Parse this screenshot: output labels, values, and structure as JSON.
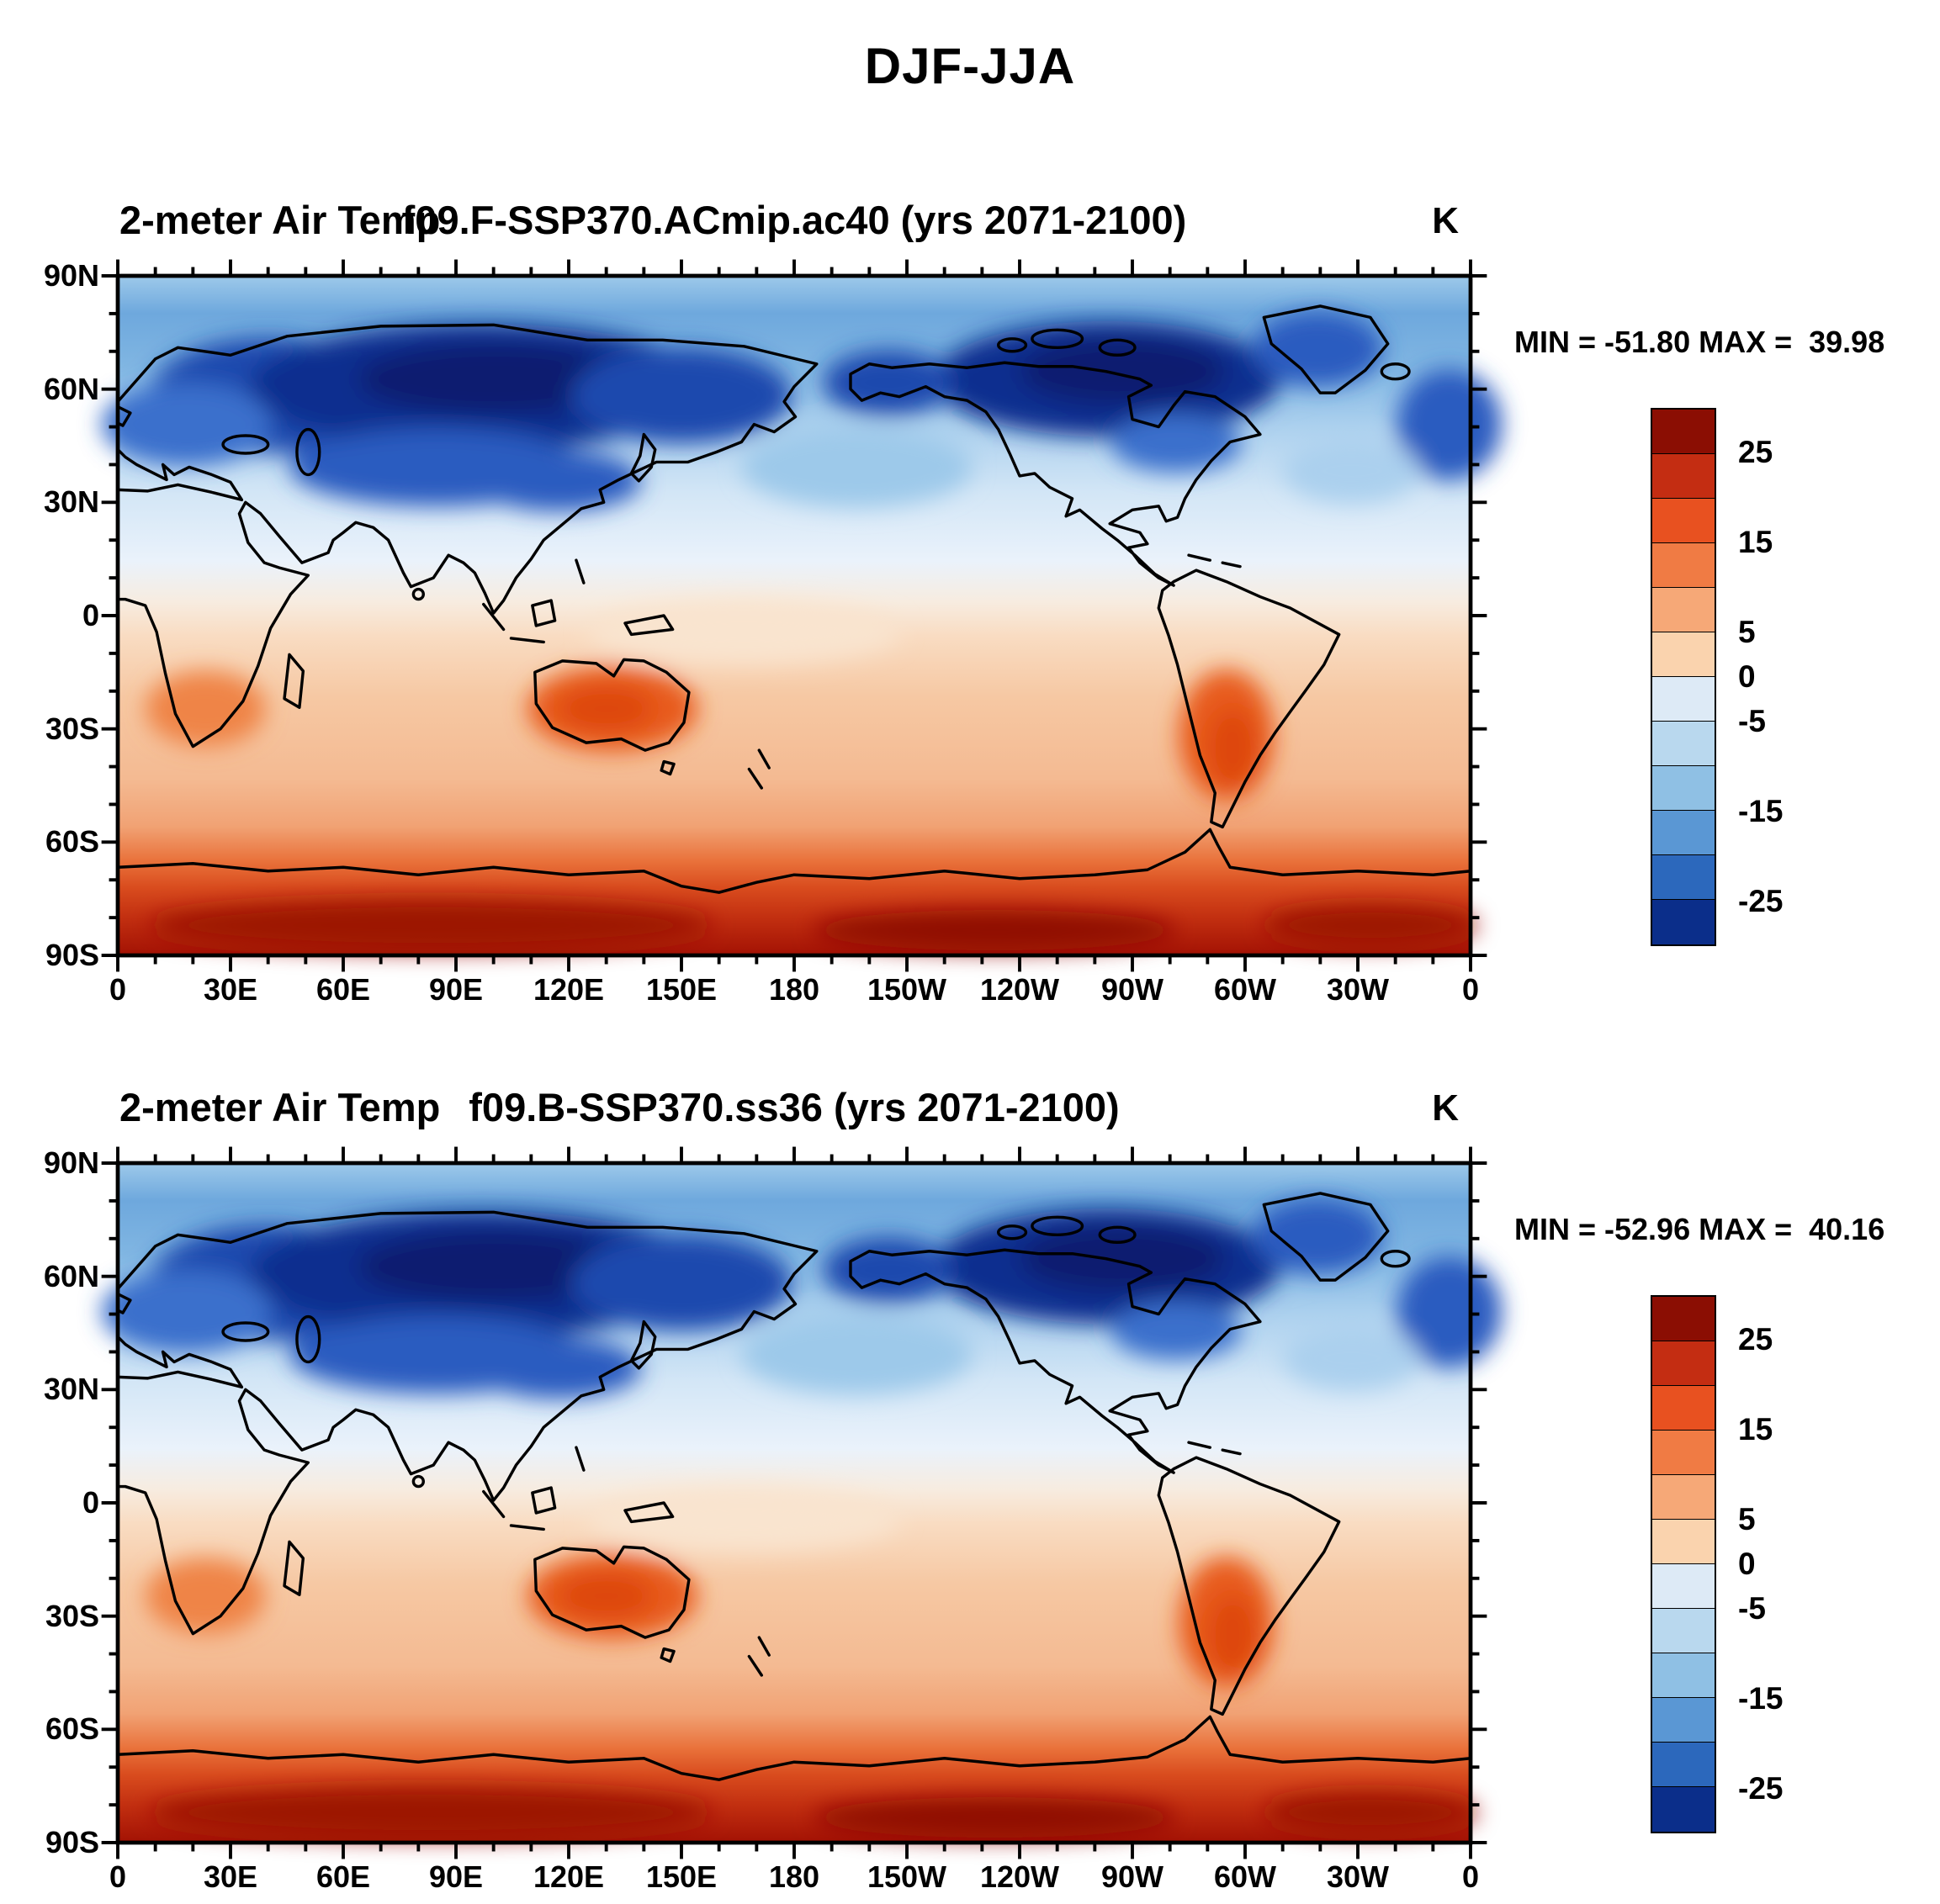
{
  "figure": {
    "title": "DJF-JJA"
  },
  "panels": [
    {
      "left_title": "2-meter Air Temp",
      "case_title": "f09.F-SSP370.ACmip.ac40 (yrs 2071-2100)",
      "units": "K",
      "minmax": "MIN = -51.80 MAX =  39.98"
    },
    {
      "left_title": "2-meter Air Temp",
      "case_title": "f09.B-SSP370.ss36 (yrs 2071-2100)",
      "units": "K",
      "minmax": "MIN = -52.96 MAX =  40.16"
    }
  ],
  "axes": {
    "x_ticks": [
      "0",
      "30E",
      "60E",
      "90E",
      "120E",
      "150E",
      "180",
      "150W",
      "120W",
      "90W",
      "60W",
      "30W",
      "0"
    ],
    "y_ticks": [
      "90N",
      "60N",
      "30N",
      "0",
      "30S",
      "60S",
      "90S"
    ]
  },
  "colorbar": {
    "segments": 12,
    "colors": [
      "#8b0e03",
      "#c42d12",
      "#e85120",
      "#f07b44",
      "#f6a877",
      "#fad3ae",
      "#ddeaf6",
      "#b9d8ee",
      "#8fc0e4",
      "#5a97d4",
      "#2c68bc",
      "#0b2e8a"
    ],
    "labels": [
      "25",
      "15",
      "5",
      "0",
      "-5",
      "-15",
      "-25"
    ],
    "label_boundaries": [
      1,
      3,
      5,
      6,
      7,
      9,
      11
    ]
  },
  "chart_data": [
    {
      "type": "heatmap",
      "title": "2-meter Air Temp  f09.F-SSP370.ACmip.ac40 (yrs 2071-2100)",
      "subtitle": "DJF-JJA",
      "units": "K",
      "min": -51.8,
      "max": 39.98,
      "x_axis": {
        "label": "longitude",
        "ticks": [
          "0",
          "30E",
          "60E",
          "90E",
          "120E",
          "150E",
          "180",
          "150W",
          "120W",
          "90W",
          "60W",
          "30W",
          "0"
        ],
        "range_deg": [
          0,
          360
        ]
      },
      "y_axis": {
        "label": "latitude",
        "ticks": [
          "90N",
          "60N",
          "30N",
          "0",
          "30S",
          "60S",
          "90S"
        ],
        "range_deg": [
          -90,
          90
        ]
      },
      "contour_levels": [
        -25,
        -20,
        -15,
        -10,
        -5,
        0,
        5,
        10,
        15,
        20,
        25
      ],
      "palette_top_to_bottom": [
        "#8b0e03",
        "#c42d12",
        "#e85120",
        "#f07b44",
        "#f6a877",
        "#fad3ae",
        "#ddeaf6",
        "#b9d8ee",
        "#8fc0e4",
        "#5a97d4",
        "#2c68bc",
        "#0b2e8a"
      ],
      "legend_position": "right",
      "grid": false,
      "pattern_summary": "Northern Hemisphere negative (blue; DJF colder than JJA) with minima below -25 K over Siberia and northern Canada; tropics near zero; Southern Hemisphere positive (orange/red) with maxima above 25 K over Antarctica."
    },
    {
      "type": "heatmap",
      "title": "2-meter Air Temp  f09.B-SSP370.ss36 (yrs 2071-2100)",
      "subtitle": "DJF-JJA",
      "units": "K",
      "min": -52.96,
      "max": 40.16,
      "x_axis": {
        "label": "longitude",
        "ticks": [
          "0",
          "30E",
          "60E",
          "90E",
          "120E",
          "150E",
          "180",
          "150W",
          "120W",
          "90W",
          "60W",
          "30W",
          "0"
        ],
        "range_deg": [
          0,
          360
        ]
      },
      "y_axis": {
        "label": "latitude",
        "ticks": [
          "90N",
          "60N",
          "30N",
          "0",
          "30S",
          "60S",
          "90S"
        ],
        "range_deg": [
          -90,
          90
        ]
      },
      "contour_levels": [
        -25,
        -20,
        -15,
        -10,
        -5,
        0,
        5,
        10,
        15,
        20,
        25
      ],
      "palette_top_to_bottom": [
        "#8b0e03",
        "#c42d12",
        "#e85120",
        "#f07b44",
        "#f6a877",
        "#fad3ae",
        "#ddeaf6",
        "#b9d8ee",
        "#8fc0e4",
        "#5a97d4",
        "#2c68bc",
        "#0b2e8a"
      ],
      "legend_position": "right",
      "grid": false,
      "pattern_summary": "Same seasonal-difference pattern as top panel: deep blue over high-latitude Northern Hemisphere continents, reds over Southern Hemisphere land and Antarctica."
    }
  ]
}
